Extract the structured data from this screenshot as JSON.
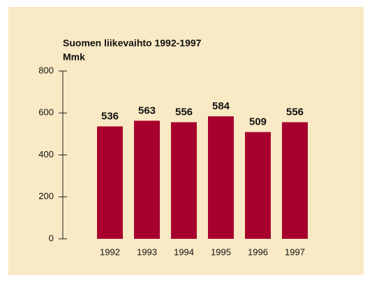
{
  "chart_data": {
    "type": "bar",
    "title": "Suomen liikevaihto 1992-1997",
    "subtitle": "Mmk",
    "categories": [
      "1992",
      "1993",
      "1994",
      "1995",
      "1996",
      "1997"
    ],
    "values": [
      536,
      563,
      556,
      584,
      509,
      556
    ],
    "color": "#a8002e",
    "ylim": [
      0,
      800
    ],
    "yticks": [
      0,
      200,
      400,
      600,
      800
    ],
    "show_value_labels": true
  }
}
